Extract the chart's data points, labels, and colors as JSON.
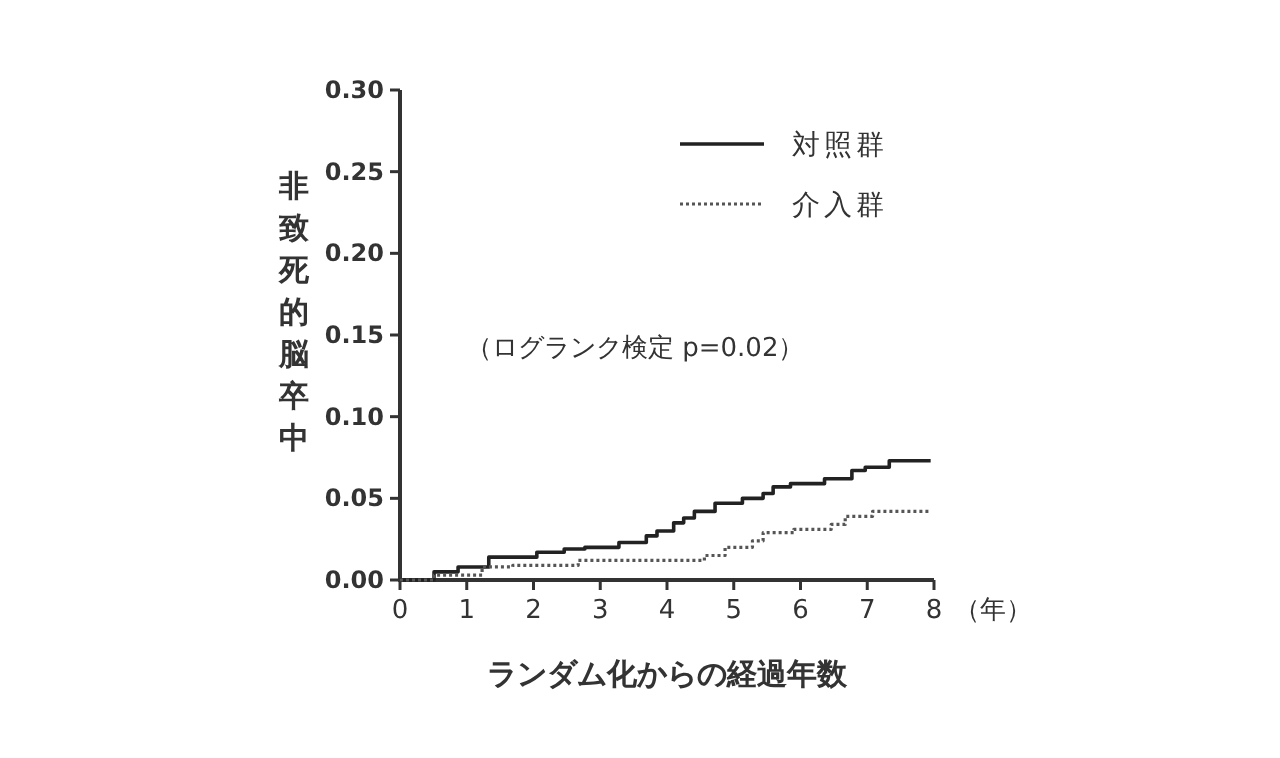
{
  "chart_data": {
    "type": "step",
    "xlabel": "ランダム化からの経過年数",
    "ylabel": "非致死的脳卒中",
    "annotations": [
      "（年）",
      "（ログランク検定  p=0.02）"
    ],
    "xlim": [
      0,
      8
    ],
    "ylim": [
      0,
      0.3
    ],
    "xticks": [
      0,
      1,
      2,
      3,
      4,
      5,
      6,
      7,
      8
    ],
    "yticks": [
      {
        "value": 0,
        "label": "0.00"
      },
      {
        "value": 0.05,
        "label": "0.05"
      },
      {
        "value": 0.1,
        "label": "0.10"
      },
      {
        "value": 0.15,
        "label": "0.15"
      },
      {
        "value": 0.2,
        "label": "0.20"
      },
      {
        "value": 0.25,
        "label": "0.25"
      },
      {
        "value": 0.3,
        "label": "0.30"
      }
    ],
    "legend": "top right",
    "series": [
      {
        "name": "対照群",
        "color": "#222222",
        "line_style": "solid",
        "x": [
          0,
          0.51,
          0.87,
          1.33,
          2.05,
          2.46,
          2.77,
          3.28,
          3.69,
          3.85,
          4.1,
          4.25,
          4.41,
          4.72,
          5.13,
          5.44,
          5.59,
          5.85,
          6.36,
          6.77,
          6.97,
          7.33,
          7.95
        ],
        "values": [
          0,
          0.005,
          0.008,
          0.014,
          0.017,
          0.019,
          0.02,
          0.023,
          0.027,
          0.03,
          0.035,
          0.038,
          0.042,
          0.047,
          0.05,
          0.053,
          0.057,
          0.059,
          0.062,
          0.067,
          0.069,
          0.073,
          0.073
        ]
      },
      {
        "name": "介入群",
        "color": "#555555",
        "line_style": "dotted",
        "x": [
          0,
          0.51,
          1.23,
          1.69,
          2.67,
          4.56,
          4.87,
          5.28,
          5.44,
          5.9,
          6.46,
          6.67,
          7.08,
          7.95
        ],
        "values": [
          0,
          0.003,
          0.008,
          0.009,
          0.012,
          0.015,
          0.02,
          0.024,
          0.029,
          0.031,
          0.034,
          0.039,
          0.042,
          0.042
        ]
      }
    ]
  }
}
